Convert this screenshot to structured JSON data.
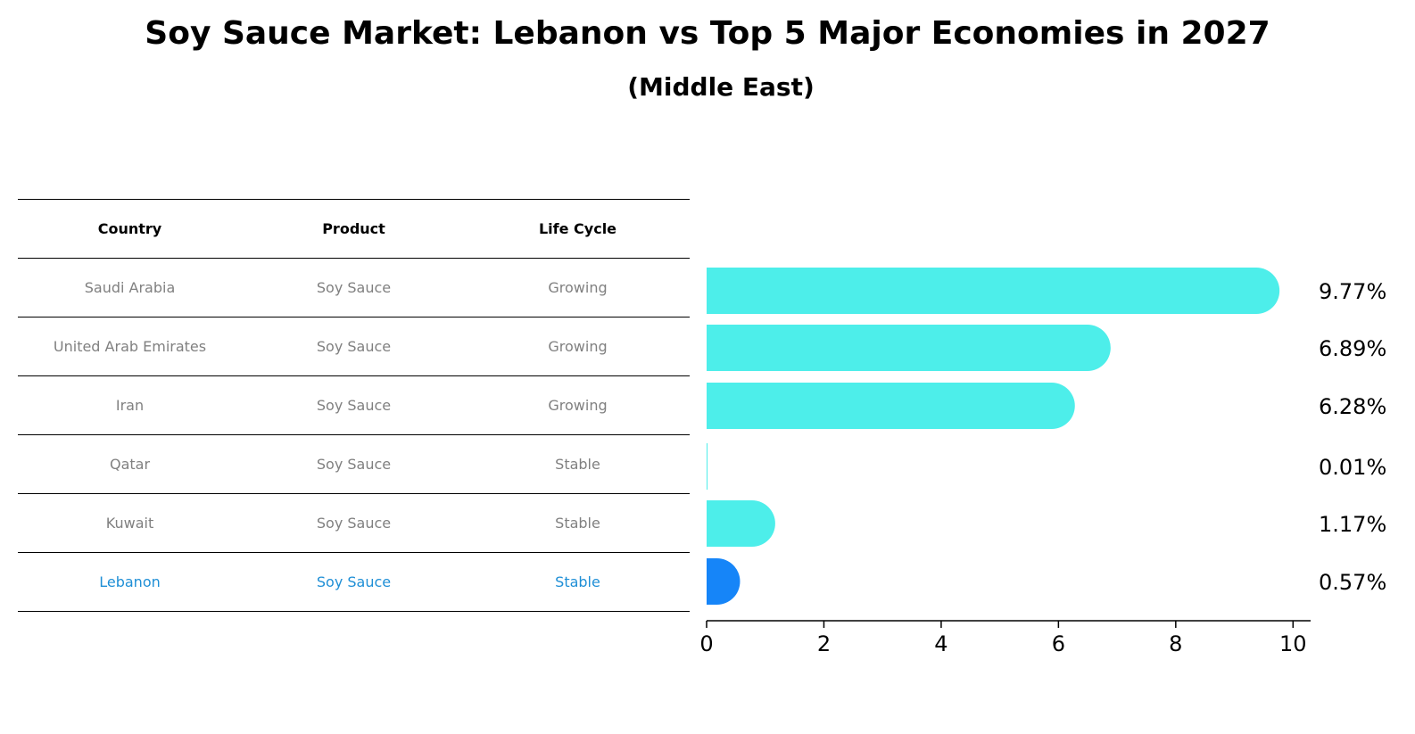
{
  "title": "Soy Sauce Market: Lebanon vs Top 5 Major Economies in 2027",
  "subtitle": "(Middle East)",
  "table": {
    "headers": [
      "Country",
      "Product",
      "Life Cycle"
    ],
    "rows": [
      {
        "country": "Saudi Arabia",
        "product": "Soy Sauce",
        "life_cycle": "Growing"
      },
      {
        "country": "United Arab Emirates",
        "product": "Soy Sauce",
        "life_cycle": "Growing"
      },
      {
        "country": "Iran",
        "product": "Soy Sauce",
        "life_cycle": "Growing"
      },
      {
        "country": "Qatar",
        "product": "Soy Sauce",
        "life_cycle": "Stable"
      },
      {
        "country": "Kuwait",
        "product": "Soy Sauce",
        "life_cycle": "Stable"
      },
      {
        "country": "Lebanon",
        "product": "Soy Sauce",
        "life_cycle": "Stable"
      }
    ],
    "highlight_row": 5,
    "colors": {
      "normal_text": "#808080",
      "highlight_text": "#1f8fd6",
      "header_text": "#000000"
    }
  },
  "chart_data": {
    "type": "bar",
    "orientation": "horizontal",
    "categories": [
      "Saudi Arabia",
      "United Arab Emirates",
      "Iran",
      "Qatar",
      "Kuwait",
      "Lebanon"
    ],
    "values": [
      9.77,
      6.89,
      6.28,
      0.01,
      1.17,
      0.57
    ],
    "value_labels": [
      "9.77%",
      "6.89%",
      "6.28%",
      "0.01%",
      "1.17%",
      "0.57%"
    ],
    "xlim": [
      0,
      10.3
    ],
    "xticks": [
      0,
      2,
      4,
      6,
      8,
      10
    ],
    "grid": false,
    "legend": "none",
    "colors": {
      "bar": "#4deeea",
      "highlight": "#1685f8"
    },
    "highlight_index": 5
  }
}
